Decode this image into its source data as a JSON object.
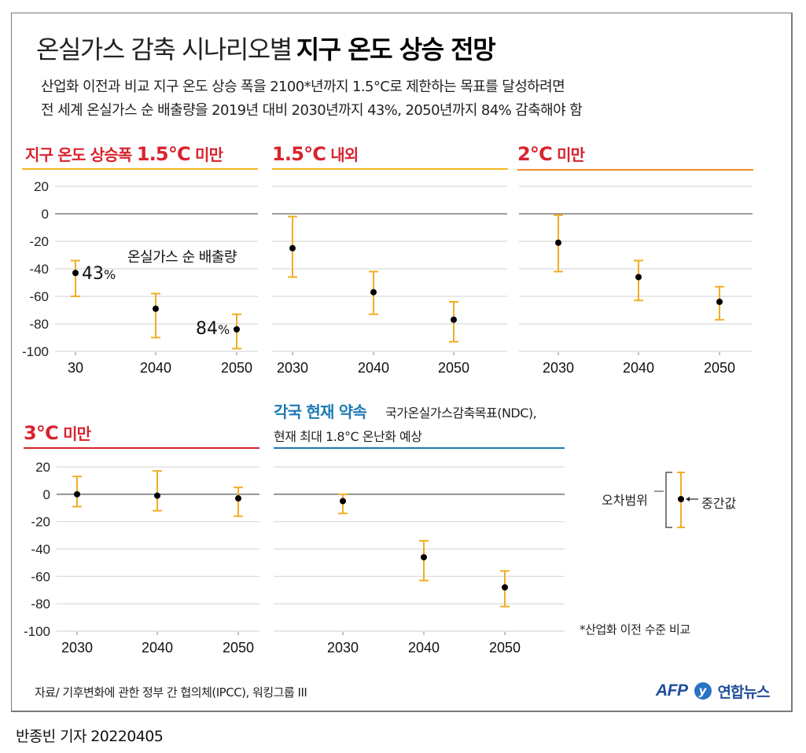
{
  "header": {
    "title_light": "온실가스 감축 시나리오별",
    "title_bold": "지구 온도 상승 전망",
    "subtitle_lines": [
      "산업화 이전과 비교 지구 온도 상승 폭을 2100*년까지 1.5°C로 제한하는 목표를 달성하려면",
      "전 세계 온실가스 순 배출량을 2019년 대비 2030년까지 43%, 2050년까지 84% 감축해야 함"
    ]
  },
  "colors": {
    "red_title": "#d9232e",
    "blue_title": "#1d7ab5",
    "rule_yellow": "#f2b51f",
    "rule_orange": "#ef8a2a",
    "rule_red": "#d9232e",
    "rule_blue": "#1d7ab5",
    "errorbar": "#f0ae24",
    "median_dot": "#000000",
    "gridline": "#d9d9d9",
    "zeroline": "#666666"
  },
  "panels": [
    {
      "title_prefix": "지구 온도 상승폭 ",
      "title_num": "1.5°C",
      "title_suffix": " 미만"
    },
    {
      "title_prefix": "",
      "title_num": "1.5°C",
      "title_suffix": " 내외"
    },
    {
      "title_prefix": "",
      "title_num": "2°C",
      "title_suffix": " 미만"
    },
    {
      "title_prefix": "",
      "title_num": "3°C",
      "title_suffix": " 미만"
    },
    {
      "title_main": "각국 현재 약속",
      "title_sub1": "국가온실가스감축목표(NDC),",
      "title_sub2": "현재 최대 1.8°C 온난화 예상"
    }
  ],
  "annotations": {
    "series_label": "온실가스 순 배출량",
    "pct_2030": "43",
    "pct_2050": "84",
    "pct_sign": "%"
  },
  "legend": {
    "range_label": "오차범위",
    "median_label": "중간값"
  },
  "footnote": "*산업화 이전 수준 비교",
  "source": "자료/ 기후변화에 관한 정부 간 협의체(IPCC), 워킹그룹 III",
  "logos": {
    "afp": "AFP",
    "yna_mark": "y",
    "yna": "연합뉴스"
  },
  "byline": "반종빈 기자  20220405",
  "chart_data": [
    {
      "type": "errorbar",
      "title": "지구 온도 상승폭 1.5°C 미만",
      "categories": [
        "30",
        "2040",
        "2050"
      ],
      "ylabel": "온실가스 순 배출량 (2019년 대비 %)",
      "ylim": [
        -100,
        20
      ],
      "yticks": [
        20,
        0,
        -20,
        -40,
        -60,
        -80,
        -100
      ],
      "grid": true,
      "median": [
        -43,
        -69,
        -84
      ],
      "upper": [
        -34,
        -58,
        -73
      ],
      "lower": [
        -60,
        -90,
        -98
      ]
    },
    {
      "type": "errorbar",
      "title": "1.5°C 내외",
      "categories": [
        "2030",
        "2040",
        "2050"
      ],
      "ylim": [
        -100,
        20
      ],
      "grid": true,
      "median": [
        -25,
        -57,
        -77
      ],
      "upper": [
        -2,
        -42,
        -64
      ],
      "lower": [
        -46,
        -73,
        -93
      ]
    },
    {
      "type": "errorbar",
      "title": "2°C 미만",
      "categories": [
        "2030",
        "2040",
        "2050"
      ],
      "ylim": [
        -100,
        20
      ],
      "grid": true,
      "median": [
        -21,
        -46,
        -64
      ],
      "upper": [
        -1,
        -34,
        -53
      ],
      "lower": [
        -42,
        -63,
        -77
      ]
    },
    {
      "type": "errorbar",
      "title": "3°C 미만",
      "categories": [
        "2030",
        "2040",
        "2050"
      ],
      "ylim": [
        -100,
        20
      ],
      "yticks": [
        20,
        0,
        -20,
        -40,
        -60,
        -80,
        -100
      ],
      "grid": true,
      "median": [
        0,
        -1,
        -3
      ],
      "upper": [
        13,
        17,
        5
      ],
      "lower": [
        -9,
        -12,
        -16
      ]
    },
    {
      "type": "errorbar",
      "title": "각국 현재 약속 국가온실가스감축목표(NDC), 현재 최대 1.8°C 온난화 예상",
      "categories": [
        "2030",
        "2040",
        "2050"
      ],
      "ylim": [
        -100,
        20
      ],
      "grid": true,
      "median": [
        -5,
        -46,
        -68
      ],
      "upper": [
        0,
        -34,
        -56
      ],
      "lower": [
        -14,
        -63,
        -82
      ]
    }
  ]
}
